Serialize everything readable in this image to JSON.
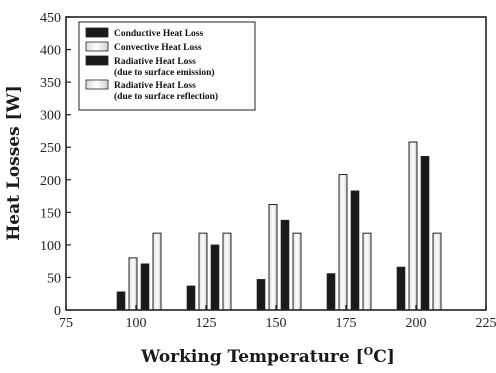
{
  "chart_data": {
    "type": "bar",
    "title": "",
    "xlabel": "Working Temperature [",
    "xlabel_sup": "O",
    "xlabel_unit": "C]",
    "ylabel": "Heat Losses [W]",
    "xlim": [
      75,
      225
    ],
    "ylim": [
      0,
      450
    ],
    "xticks": [
      75,
      100,
      125,
      150,
      175,
      200,
      225
    ],
    "yticks": [
      0,
      50,
      100,
      150,
      200,
      250,
      300,
      350,
      400,
      450
    ],
    "categories": [
      100,
      125,
      150,
      175,
      200
    ],
    "series": [
      {
        "name": "Conductive Heat Loss",
        "name_line2": "",
        "color": "#1a1a1a",
        "values": [
          28,
          37,
          47,
          56,
          66
        ]
      },
      {
        "name": "Convective Heat Loss",
        "name_line2": "",
        "color": "#f2f2f2",
        "values": [
          80,
          118,
          162,
          208,
          258
        ]
      },
      {
        "name": "Radiative Heat Loss",
        "name_line2": "(due to surface emission)",
        "color": "#1a1a1a",
        "values": [
          71,
          100,
          138,
          183,
          236
        ]
      },
      {
        "name": "Radiative Heat Loss",
        "name_line2": "(due to surface reflection)",
        "color": "#f2f2f2",
        "values": [
          118,
          118,
          118,
          118,
          118
        ]
      }
    ],
    "grid": false,
    "legend_position": "top-left"
  }
}
